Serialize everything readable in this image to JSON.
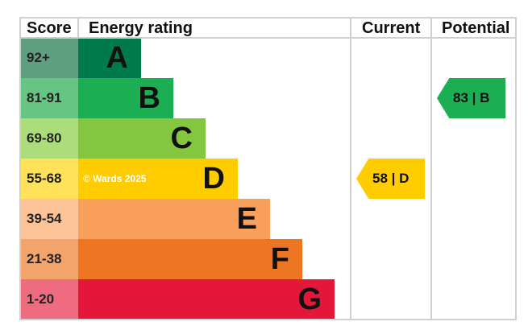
{
  "chart_data": {
    "type": "bar",
    "headers": {
      "score": "Score",
      "rating": "Energy rating",
      "current": "Current",
      "potential": "Potential"
    },
    "bands": [
      {
        "score": "92+",
        "letter": "A",
        "color": "#007a4d",
        "score_color": "#5f9f80"
      },
      {
        "score": "81-91",
        "letter": "B",
        "color": "#1bae52",
        "score_color": "#66c582"
      },
      {
        "score": "69-80",
        "letter": "C",
        "color": "#84c63f",
        "score_color": "#addc7b"
      },
      {
        "score": "55-68",
        "letter": "D",
        "color": "#ffcc00",
        "score_color": "#ffe25a"
      },
      {
        "score": "39-54",
        "letter": "E",
        "color": "#f9a05c",
        "score_color": "#fbc396"
      },
      {
        "score": "21-38",
        "letter": "F",
        "color": "#ee7522",
        "score_color": "#f2a46a"
      },
      {
        "score": "1-20",
        "letter": "G",
        "color": "#e4173a",
        "score_color": "#ef6b80"
      }
    ],
    "current": {
      "value": 58,
      "band": "D",
      "label": "58 | D",
      "color": "#ffcc00"
    },
    "potential": {
      "value": 83,
      "band": "B",
      "label": "83 | B",
      "color": "#1bae52"
    },
    "watermark": "© Wards 2025"
  }
}
